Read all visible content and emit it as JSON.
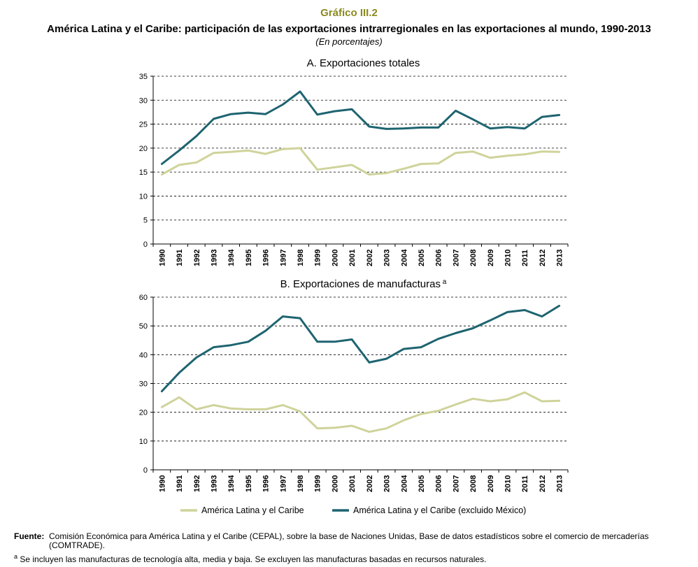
{
  "figure": {
    "label": "Gráfico III.2",
    "title": "América Latina y el Caribe: participación de las exportaciones intrarregionales en las exportaciones al mundo, 1990-2013",
    "subtitle": "(En porcentajes)"
  },
  "colors": {
    "alc": "#cfd39a",
    "alc_ex_mex": "#1e6470"
  },
  "legend": {
    "alc": "América Latina y el Caribe",
    "alc_ex_mex": "América Latina y el Caribe (excluido México)"
  },
  "footnotes": {
    "source_label": "Fuente",
    "source_text": "Comisión Económica para América Latina y el Caribe (CEPAL), sobre la base de Naciones Unidas, Base de datos estadísticos sobre el comercio de mercaderías (COMTRADE).",
    "note_marker": "a",
    "note_text": "Se incluyen las manufacturas de tecnología alta, media y baja. Se excluyen las manufacturas basadas en recursos naturales."
  },
  "chart_data": [
    {
      "type": "line",
      "title": "A. Exportaciones totales",
      "x": [
        "1990",
        "1991",
        "1992",
        "1993",
        "1994",
        "1995",
        "1996",
        "1997",
        "1998",
        "1999",
        "2000",
        "2001",
        "2002",
        "2003",
        "2004",
        "2005",
        "2006",
        "2007",
        "2008",
        "2009",
        "2010",
        "2011",
        "2012",
        "2013"
      ],
      "ylim": [
        0,
        35
      ],
      "yticks": [
        0,
        5,
        10,
        15,
        20,
        25,
        30,
        35
      ],
      "grid": "horizontal dashed",
      "series": [
        {
          "name": "América Latina y el Caribe",
          "key": "alc",
          "values": [
            14.5,
            16.5,
            17.0,
            19.0,
            19.2,
            19.5,
            18.8,
            19.8,
            20.0,
            15.5,
            16.0,
            16.5,
            14.5,
            14.8,
            15.7,
            16.7,
            16.8,
            19.0,
            19.3,
            18.0,
            18.4,
            18.7,
            19.3,
            19.2
          ]
        },
        {
          "name": "América Latina y el Caribe (excluido México)",
          "key": "alc_ex_mex",
          "values": [
            16.7,
            19.5,
            22.5,
            26.1,
            27.1,
            27.4,
            27.1,
            29.1,
            31.8,
            27.0,
            27.7,
            28.1,
            24.5,
            24.0,
            24.1,
            24.3,
            24.3,
            27.8,
            26.0,
            24.1,
            24.4,
            24.1,
            26.5,
            26.9
          ]
        }
      ]
    },
    {
      "type": "line",
      "title": "B. Exportaciones de manufacturas",
      "title_note": "a",
      "x": [
        "1990",
        "1991",
        "1992",
        "1993",
        "1994",
        "1995",
        "1996",
        "1997",
        "1998",
        "1999",
        "2000",
        "2001",
        "2002",
        "2003",
        "2004",
        "2005",
        "2006",
        "2007",
        "2008",
        "2009",
        "2010",
        "2011",
        "2012",
        "2013"
      ],
      "ylim": [
        0,
        60
      ],
      "yticks": [
        0,
        10,
        20,
        30,
        40,
        50,
        60
      ],
      "grid": "horizontal dashed",
      "series": [
        {
          "name": "América Latina y el Caribe",
          "key": "alc",
          "values": [
            21.8,
            25.2,
            21.0,
            22.5,
            21.3,
            21.0,
            21.0,
            22.5,
            20.3,
            14.4,
            14.6,
            15.3,
            13.2,
            14.4,
            17.2,
            19.4,
            20.5,
            22.7,
            24.7,
            23.8,
            24.5,
            26.9,
            23.8,
            24.0
          ]
        },
        {
          "name": "América Latina y el Caribe (excluido México)",
          "key": "alc_ex_mex",
          "values": [
            27.3,
            33.7,
            39.0,
            42.6,
            43.3,
            44.5,
            48.3,
            53.3,
            52.7,
            44.5,
            44.5,
            45.3,
            37.3,
            38.6,
            42.0,
            42.6,
            45.5,
            47.5,
            49.2,
            51.9,
            54.8,
            55.5,
            53.3,
            57.0
          ]
        }
      ]
    }
  ]
}
